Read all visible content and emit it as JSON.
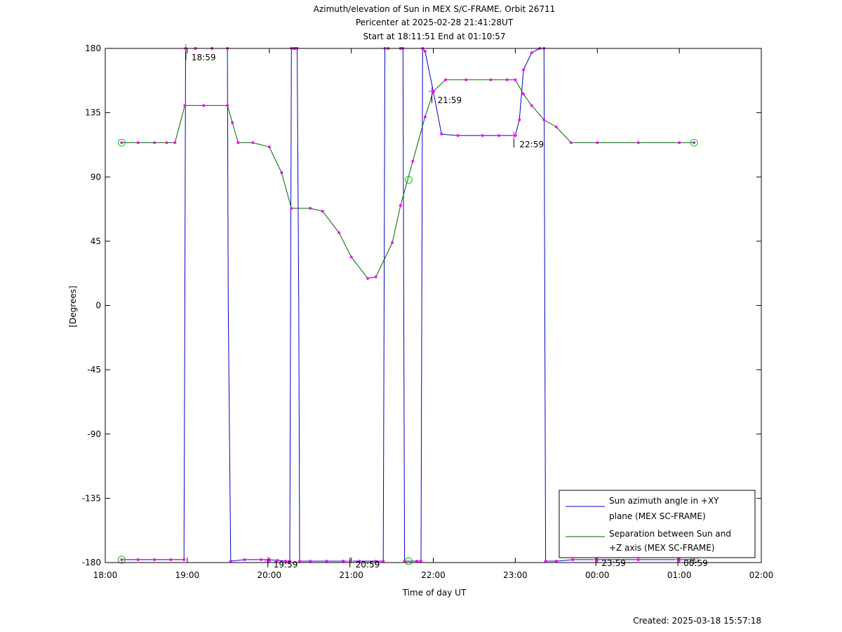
{
  "chart_data": {
    "type": "line",
    "title": "Azimuth/elevation of Sun in MEX S/C-FRAME.  Orbit 26711",
    "subtitle_1": "Pericenter at 2025-02-28 21:41:28UT",
    "subtitle_2": "Start at 18:11:51 End at 01:10:57",
    "xlabel": "Time of day UT",
    "ylabel": "[Degrees]",
    "xlim": [
      18,
      26
    ],
    "ylim": [
      -180,
      180
    ],
    "x_ticks": [
      {
        "v": 18,
        "label": "18:00"
      },
      {
        "v": 19,
        "label": "19:00"
      },
      {
        "v": 20,
        "label": "20:00"
      },
      {
        "v": 21,
        "label": "21:00"
      },
      {
        "v": 22,
        "label": "22:00"
      },
      {
        "v": 23,
        "label": "23:00"
      },
      {
        "v": 24,
        "label": "00:00"
      },
      {
        "v": 25,
        "label": "01:00"
      },
      {
        "v": 26,
        "label": "02:00"
      }
    ],
    "y_ticks": [
      {
        "v": 180,
        "label": "180"
      },
      {
        "v": 135,
        "label": "135"
      },
      {
        "v": 90,
        "label": "90"
      },
      {
        "v": 45,
        "label": "45"
      },
      {
        "v": 0,
        "label": "0"
      },
      {
        "v": -45,
        "label": "-45"
      },
      {
        "v": -90,
        "label": "-90"
      },
      {
        "v": -135,
        "label": "-135"
      },
      {
        "v": -180,
        "label": "-180"
      }
    ],
    "legend_position": "bottom-right",
    "series": [
      {
        "name_line1": "Sun azimuth angle in +XY",
        "name_line2": "plane (MEX SC-FRAME)",
        "color": "#0000cc",
        "x": [
          18.2,
          18.4,
          18.6,
          18.8,
          18.96,
          18.97,
          18.98,
          19.1,
          19.3,
          19.49,
          19.5,
          19.53,
          19.7,
          19.9,
          20.0,
          20.1,
          20.2,
          20.25,
          20.26,
          20.27,
          20.3,
          20.32,
          20.34,
          20.36,
          20.37,
          20.5,
          20.7,
          20.9,
          21.1,
          21.3,
          21.39,
          21.4,
          21.41,
          21.45,
          21.6,
          21.63,
          21.64,
          21.65,
          21.8,
          21.85,
          21.86,
          21.87,
          21.9,
          22.0,
          22.1,
          22.3,
          22.6,
          22.8,
          23.0,
          23.05,
          23.1,
          23.2,
          23.3,
          23.35,
          23.36,
          23.37,
          23.5,
          23.7,
          24.0,
          24.5,
          25.0,
          25.18
        ],
        "y": [
          -178,
          -178,
          -178,
          -178,
          -178,
          0,
          180,
          180,
          180,
          180,
          0,
          -179,
          -178,
          -178,
          -178,
          -178.5,
          -179,
          -179,
          0,
          180,
          180,
          180,
          180,
          0,
          -179,
          -179,
          -179,
          -179,
          -179,
          -179,
          -179,
          0,
          180,
          180,
          180,
          180,
          0,
          -179,
          -179,
          -179,
          0,
          180,
          178,
          150,
          120,
          119,
          119,
          119,
          119,
          130,
          165,
          177,
          180,
          180,
          0,
          -179,
          -179,
          -178,
          -178,
          -178,
          -178,
          -178
        ]
      },
      {
        "name_line1": "Separation between Sun and",
        "name_line2": "+Z axis (MEX SC-FRAME)",
        "color": "#006600",
        "x": [
          18.2,
          18.4,
          18.6,
          18.75,
          18.85,
          18.97,
          19.2,
          19.49,
          19.55,
          19.62,
          19.8,
          20.0,
          20.15,
          20.27,
          20.5,
          20.65,
          20.85,
          21.0,
          21.2,
          21.3,
          21.5,
          21.6,
          21.75,
          21.9,
          22.0,
          22.15,
          22.4,
          22.7,
          22.9,
          23.0,
          23.1,
          23.2,
          23.35,
          23.5,
          23.68,
          24.0,
          24.5,
          25.0,
          25.18
        ],
        "y": [
          114,
          114,
          114,
          114,
          114,
          140,
          140,
          140,
          128,
          114,
          114,
          111,
          93,
          68,
          68,
          66,
          51,
          34,
          19,
          20,
          44,
          70,
          101,
          132,
          150,
          158,
          158,
          158,
          158,
          158,
          148,
          140,
          130,
          125,
          114,
          114,
          114,
          114,
          114
        ]
      }
    ],
    "markers": [
      {
        "x": 18.983,
        "label": "18:59"
      },
      {
        "x": 19.983,
        "label": "19:59"
      },
      {
        "x": 20.983,
        "label": "20:59"
      },
      {
        "x": 21.983,
        "label": "21:59"
      },
      {
        "x": 22.983,
        "label": "22:59"
      },
      {
        "x": 23.983,
        "label": "23:59"
      },
      {
        "x": 24.983,
        "label": "00:59"
      }
    ],
    "footer": "Created: 2025-03-18 15:57:18"
  }
}
